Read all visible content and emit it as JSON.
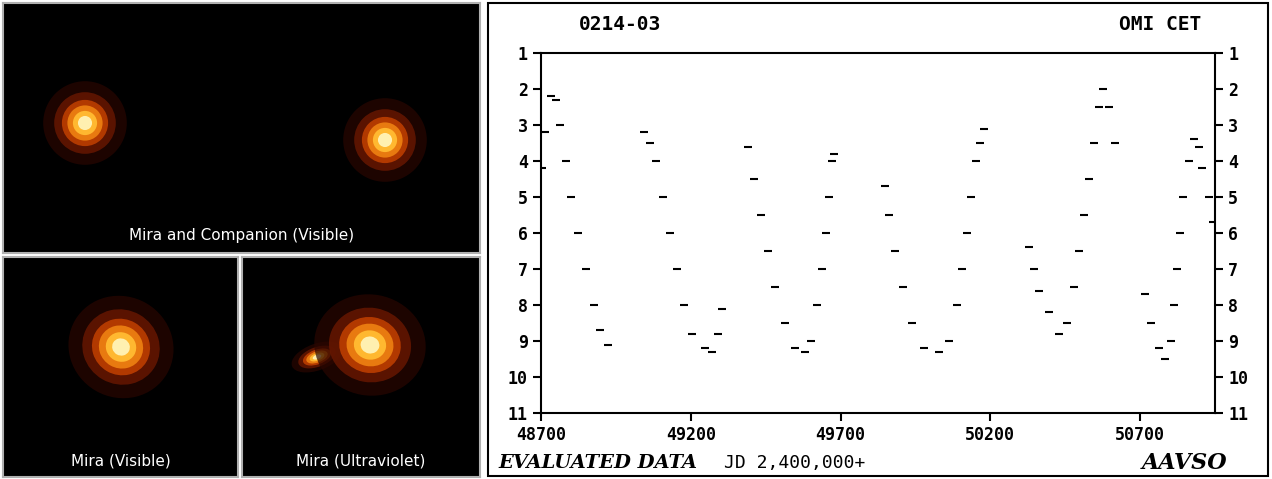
{
  "images": [
    {
      "caption": "Mira and Companion (Visible)"
    },
    {
      "caption": "Mira (Visible)"
    },
    {
      "caption": "Mira (Ultraviolet)"
    }
  ],
  "chart_data": {
    "type": "scatter",
    "title": "OMI CET",
    "subtitle": "0214-03",
    "xlabel": "JD 2,400,000+",
    "annotations": [
      "EVALUATED DATA",
      "AAVSO"
    ],
    "color": "#000000",
    "marker": "dash",
    "xlim": [
      48700,
      50950
    ],
    "xticks": [
      48700,
      49200,
      49700,
      50200,
      50700
    ],
    "ylim": [
      11,
      1
    ],
    "yticks": [
      1,
      2,
      3,
      4,
      5,
      6,
      7,
      8,
      9,
      10,
      11
    ],
    "tick_labels": true,
    "x": [
      48703,
      48715,
      48735,
      48750,
      48765,
      48785,
      48800,
      48825,
      48850,
      48877,
      48897,
      48923,
      49043,
      49063,
      49083,
      49107,
      49130,
      49153,
      49177,
      49203,
      49247,
      49270,
      49290,
      49303,
      49390,
      49410,
      49433,
      49457,
      49480,
      49513,
      49547,
      49580,
      49603,
      49623,
      49637,
      49650,
      49660,
      49670,
      49677,
      49847,
      49863,
      49883,
      49907,
      49937,
      49980,
      50030,
      50063,
      50090,
      50107,
      50123,
      50137,
      50153,
      50167,
      50180,
      50330,
      50347,
      50363,
      50397,
      50430,
      50457,
      50480,
      50497,
      50513,
      50530,
      50547,
      50563,
      50577,
      50597,
      50617,
      50717,
      50737,
      50763,
      50783,
      50803,
      50813,
      50823,
      50833,
      50843,
      50863,
      50880,
      50897,
      50907,
      50930,
      50943
    ],
    "values": [
      4.2,
      3.2,
      2.2,
      2.3,
      3.0,
      4.0,
      5.0,
      6.0,
      7.0,
      8.0,
      8.7,
      9.1,
      3.2,
      3.5,
      4.0,
      5.0,
      6.0,
      7.0,
      8.0,
      8.8,
      9.2,
      9.3,
      8.8,
      8.1,
      3.6,
      4.5,
      5.5,
      6.5,
      7.5,
      8.5,
      9.2,
      9.3,
      9.0,
      8.0,
      7.0,
      6.0,
      5.0,
      4.0,
      3.8,
      4.7,
      5.5,
      6.5,
      7.5,
      8.5,
      9.2,
      9.3,
      9.0,
      8.0,
      7.0,
      6.0,
      5.0,
      4.0,
      3.5,
      3.1,
      6.4,
      7.0,
      7.6,
      8.2,
      8.8,
      8.5,
      7.5,
      6.5,
      5.5,
      4.5,
      3.5,
      2.5,
      2.0,
      2.5,
      3.5,
      7.7,
      8.5,
      9.2,
      9.5,
      9.0,
      8.0,
      7.0,
      6.0,
      5.0,
      4.0,
      3.4,
      3.6,
      4.2,
      5.0,
      5.7
    ]
  }
}
